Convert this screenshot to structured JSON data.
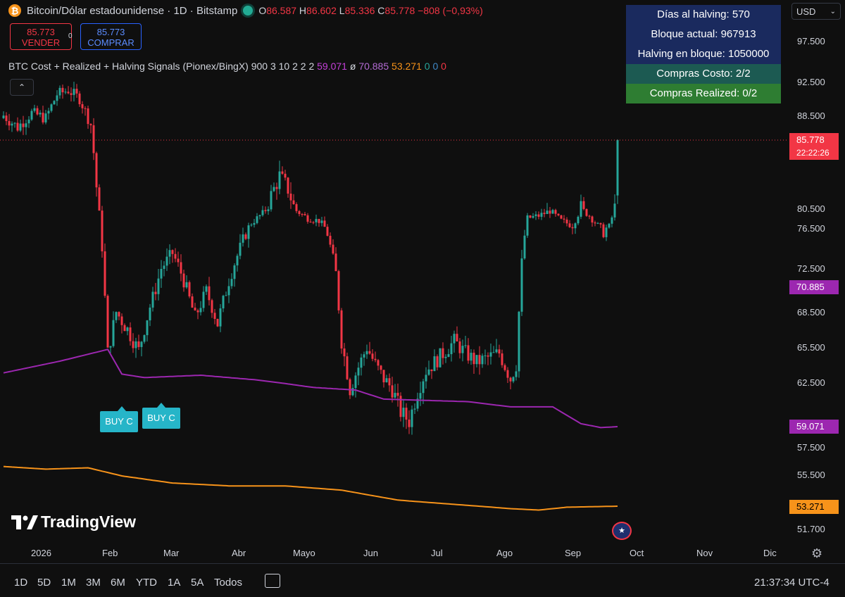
{
  "header": {
    "symbol_icon": "bitcoin-icon",
    "title": "Bitcoin/Dólar estadounidense · 1D · Bitstamp",
    "ohlc": {
      "o_label": "O",
      "o": "86.587",
      "h_label": "H",
      "h": "86.602",
      "l_label": "L",
      "l": "85.336",
      "c_label": "C",
      "c": "85.778",
      "change": "−808 (−0,93%)"
    }
  },
  "trade": {
    "sell_price": "85.773",
    "sell_label": "VENDER",
    "buy_price": "85.773",
    "buy_label": "COMPRAR",
    "spread": "0"
  },
  "indicator": {
    "name": "BTC Cost + Realized + Halving Signals (Pionex/BingX) 900 3 10 2 2 2",
    "v1": "59.071",
    "v2_prefix": "ø",
    "v2": "70.885",
    "v3": "53.271",
    "z1": "0",
    "z2": "0",
    "z3": "0",
    "collapse_glyph": "⌃"
  },
  "infobox": {
    "rows": [
      {
        "text": "Días al halving: 570",
        "bg": "#1a2a5e"
      },
      {
        "text": "Bloque actual: 967913",
        "bg": "#1a2a5e"
      },
      {
        "text": "Halving en bloque: 1050000",
        "bg": "#1a2a5e"
      },
      {
        "text": "Compras Costo: 2/2",
        "bg": "#1c5a52"
      },
      {
        "text": "Compras Realized: 0/2",
        "bg": "#2e7d32"
      }
    ]
  },
  "currency": {
    "value": "USD",
    "arrow": "⌄"
  },
  "colors": {
    "up": "#26a69a",
    "down": "#f23645",
    "realized": "#9c27b0",
    "cost": "#f7931a",
    "buy_signal": "#26b5c8"
  },
  "chart_data": {
    "type": "candlestick",
    "x_ticks": [
      "2026",
      "Feb",
      "Mar",
      "Abr",
      "Mayo",
      "Jun",
      "Jul",
      "Ago",
      "Sep",
      "Oct",
      "Nov",
      "Dic"
    ],
    "y_ticks": [
      "97.500",
      "92.500",
      "88.500",
      "80.500",
      "76.500",
      "72.500",
      "68.500",
      "65.500",
      "62.500",
      "57.500",
      "55.500",
      "51.700"
    ],
    "last_price": {
      "value": "85.778",
      "countdown": "22:22:26"
    },
    "realized_badge": "70.885",
    "purple_badge": "59.071",
    "orange_badge": "53.271",
    "price_anchors": [
      [
        0,
        88.5
      ],
      [
        5,
        87.2
      ],
      [
        10,
        88.8
      ],
      [
        15,
        88.2
      ],
      [
        19,
        91.0
      ],
      [
        23,
        91.5
      ],
      [
        27,
        90.5
      ],
      [
        31,
        87.5
      ],
      [
        34,
        79.5
      ],
      [
        37,
        65.0
      ],
      [
        40,
        68.5
      ],
      [
        44,
        67.0
      ],
      [
        48,
        65.2
      ],
      [
        52,
        69.0
      ],
      [
        56,
        72.5
      ],
      [
        60,
        74.0
      ],
      [
        64,
        71.5
      ],
      [
        68,
        68.0
      ],
      [
        72,
        70.5
      ],
      [
        76,
        67.5
      ],
      [
        80,
        71.5
      ],
      [
        84,
        74.5
      ],
      [
        88,
        77.5
      ],
      [
        92,
        79.5
      ],
      [
        95,
        81.5
      ],
      [
        98,
        83.0
      ],
      [
        101,
        82.0
      ],
      [
        104,
        80.0
      ],
      [
        108,
        78.5
      ],
      [
        112,
        78.0
      ],
      [
        115,
        76.0
      ],
      [
        118,
        72.0
      ],
      [
        120,
        66.0
      ],
      [
        123,
        62.0
      ],
      [
        126,
        63.8
      ],
      [
        129,
        65.5
      ],
      [
        132,
        64.0
      ],
      [
        135,
        62.8
      ],
      [
        138,
        62.0
      ],
      [
        141,
        60.2
      ],
      [
        144,
        59.5
      ],
      [
        147,
        61.8
      ],
      [
        150,
        63.5
      ],
      [
        153,
        64.2
      ],
      [
        157,
        65.2
      ],
      [
        160,
        66.0
      ],
      [
        164,
        65.0
      ],
      [
        168,
        64.2
      ],
      [
        172,
        64.6
      ],
      [
        176,
        65.0
      ],
      [
        180,
        62.8
      ],
      [
        182,
        64.0
      ],
      [
        184,
        73.0
      ],
      [
        186,
        78.5
      ],
      [
        190,
        79.0
      ],
      [
        194,
        80.0
      ],
      [
        198,
        78.0
      ],
      [
        202,
        77.0
      ],
      [
        205,
        80.5
      ],
      [
        208,
        79.0
      ],
      [
        211,
        77.0
      ],
      [
        213,
        76.2
      ],
      [
        215,
        76.8
      ],
      [
        217,
        80.5
      ],
      [
        218,
        85.778
      ]
    ],
    "realized_line": [
      [
        0,
        63.3
      ],
      [
        20,
        64.3
      ],
      [
        37,
        65.3
      ],
      [
        42,
        63.2
      ],
      [
        50,
        62.9
      ],
      [
        70,
        63.1
      ],
      [
        90,
        62.7
      ],
      [
        110,
        62.1
      ],
      [
        125,
        61.9
      ],
      [
        135,
        61.2
      ],
      [
        150,
        61.1
      ],
      [
        165,
        61.0
      ],
      [
        180,
        60.6
      ],
      [
        195,
        60.6
      ],
      [
        205,
        59.3
      ],
      [
        212,
        59.0
      ],
      [
        218,
        59.071
      ]
    ],
    "cost_line": [
      [
        0,
        56.1
      ],
      [
        15,
        55.9
      ],
      [
        30,
        56.0
      ],
      [
        42,
        55.4
      ],
      [
        60,
        54.9
      ],
      [
        80,
        54.7
      ],
      [
        100,
        54.7
      ],
      [
        120,
        54.4
      ],
      [
        140,
        53.7
      ],
      [
        160,
        53.4
      ],
      [
        180,
        53.1
      ],
      [
        190,
        53.0
      ],
      [
        200,
        53.2
      ],
      [
        218,
        53.271
      ]
    ],
    "buy_signals": [
      {
        "day": 42,
        "label": "BUY C",
        "position": "below"
      },
      {
        "day": 56,
        "label": "BUY C",
        "position": "above"
      }
    ]
  },
  "branding": "TradingView",
  "flag_icon": "us-flag-icon",
  "settings_icon": "gear-icon",
  "timeframes": [
    "1D",
    "5D",
    "1M",
    "3M",
    "6M",
    "YTD",
    "1A",
    "5A",
    "Todos"
  ],
  "calendar_icon": "calendar-icon",
  "clock": "21:37:34 UTC-4"
}
